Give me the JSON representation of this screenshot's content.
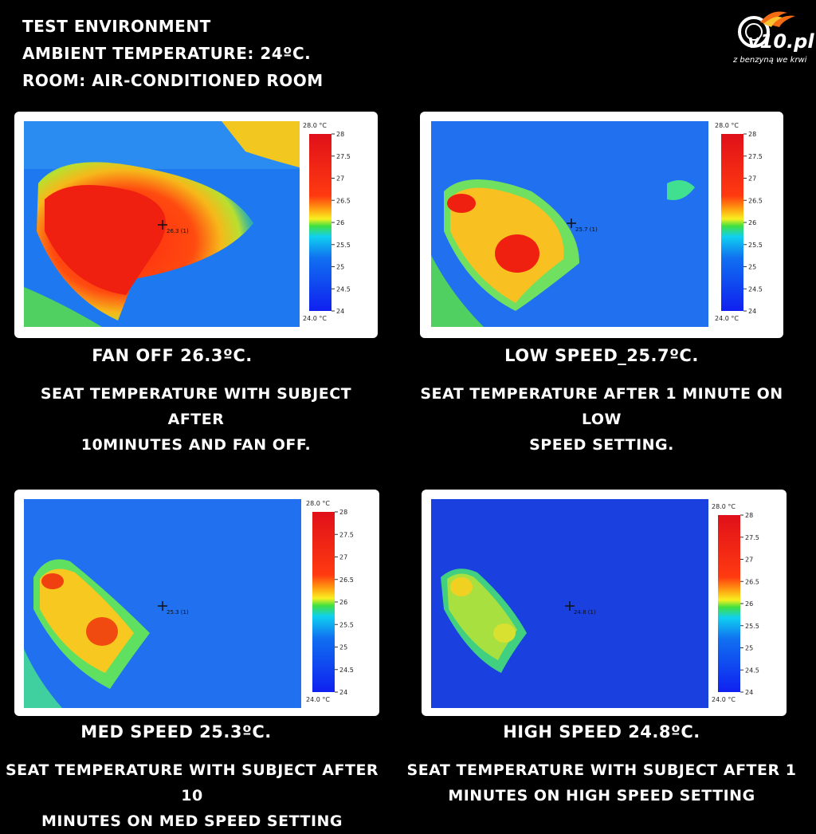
{
  "header": {
    "line1": "TEST ENVIRONMENT",
    "line2": "AMBIENT TEMPERATURE: 24ºC.",
    "line3": "ROOM: AIR-CONDITIONED ROOM"
  },
  "logo": {
    "brand": "v10.pl",
    "tagline": "z benzyną we krwi"
  },
  "scale": {
    "top_label": "28.0 °C",
    "bottom_label": "24.0 °C",
    "ticks": [
      "28",
      "27.5",
      "27",
      "26.5",
      "26",
      "25.5",
      "25",
      "24.5",
      "24"
    ]
  },
  "panels": [
    {
      "title": "FAN OFF 26.3ºC.",
      "desc_line1": "SEAT TEMPERATURE WITH SUBJECT AFTER",
      "desc_line2": "10MINUTES AND FAN OFF.",
      "marker_label": "26.3 (1)"
    },
    {
      "title": "LOW SPEED_25.7ºC.",
      "desc_line1": "SEAT TEMPERATURE AFTER 1 MINUTE ON LOW",
      "desc_line2": "SPEED SETTING.",
      "marker_label": "25.7 (1)"
    },
    {
      "title": "MED SPEED 25.3ºC.",
      "desc_line1": "SEAT TEMPERATURE WITH SUBJECT AFTER 10",
      "desc_line2": "MINUTES ON MED SPEED SETTING",
      "marker_label": "25.3 (1)"
    },
    {
      "title": "HIGH SPEED 24.8ºC.",
      "desc_line1": "SEAT TEMPERATURE WITH SUBJECT AFTER 1",
      "desc_line2": "MINUTES ON HIGH SPEED SETTING",
      "marker_label": "24.8 (1)"
    }
  ]
}
